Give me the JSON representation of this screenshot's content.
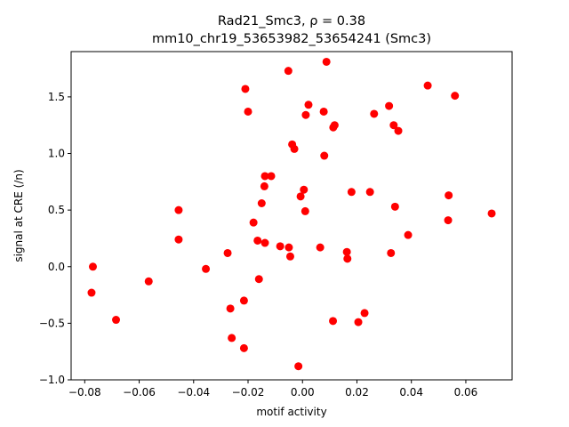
{
  "chart_data": {
    "type": "scatter",
    "title_line1": "Rad21_Smc3, ρ = 0.38",
    "title_line2": "mm10_chr19_53653982_53654241 (Smc3)",
    "xlabel": "motif activity",
    "ylabel": "signal at CRE (/n)",
    "xlim": [
      -0.085,
      0.077
    ],
    "ylim": [
      -1.0,
      1.9
    ],
    "xticks": [
      -0.08,
      -0.06,
      -0.04,
      -0.02,
      0.0,
      0.02,
      0.04,
      0.06
    ],
    "xtick_labels": [
      "−0.08",
      "−0.06",
      "−0.04",
      "−0.02",
      "0.00",
      "0.02",
      "0.04",
      "0.06"
    ],
    "yticks": [
      -1.0,
      -0.5,
      0.0,
      0.5,
      1.0,
      1.5
    ],
    "ytick_labels": [
      "−1.0",
      "−0.5",
      "0.0",
      "0.5",
      "1.0",
      "1.5"
    ],
    "grid": false,
    "marker_color": "#ff0000",
    "points": [
      [
        -0.0775,
        -0.23
      ],
      [
        -0.077,
        0.0
      ],
      [
        -0.0685,
        -0.47
      ],
      [
        -0.0565,
        -0.13
      ],
      [
        -0.0455,
        0.5
      ],
      [
        -0.0455,
        0.24
      ],
      [
        -0.0355,
        -0.02
      ],
      [
        -0.0275,
        0.12
      ],
      [
        -0.0265,
        -0.37
      ],
      [
        -0.026,
        -0.63
      ],
      [
        -0.0215,
        -0.3
      ],
      [
        -0.0215,
        -0.72
      ],
      [
        -0.021,
        1.57
      ],
      [
        -0.02,
        1.37
      ],
      [
        -0.018,
        0.39
      ],
      [
        -0.0165,
        0.23
      ],
      [
        -0.016,
        -0.11
      ],
      [
        -0.015,
        0.56
      ],
      [
        -0.014,
        0.71
      ],
      [
        -0.0138,
        0.8
      ],
      [
        -0.0138,
        0.21
      ],
      [
        -0.0115,
        0.8
      ],
      [
        -0.0082,
        0.18
      ],
      [
        -0.0052,
        1.73
      ],
      [
        -0.005,
        0.17
      ],
      [
        -0.0045,
        0.09
      ],
      [
        -0.0038,
        1.08
      ],
      [
        -0.003,
        1.04
      ],
      [
        -0.0015,
        -0.88
      ],
      [
        -0.0007,
        0.62
      ],
      [
        0.0005,
        0.68
      ],
      [
        0.001,
        0.49
      ],
      [
        0.0012,
        1.34
      ],
      [
        0.0022,
        1.43
      ],
      [
        0.0065,
        0.17
      ],
      [
        0.0078,
        1.37
      ],
      [
        0.008,
        0.98
      ],
      [
        0.0088,
        1.81
      ],
      [
        0.0112,
        -0.48
      ],
      [
        0.0113,
        1.23
      ],
      [
        0.0118,
        1.25
      ],
      [
        0.0163,
        0.13
      ],
      [
        0.0165,
        0.07
      ],
      [
        0.018,
        0.66
      ],
      [
        0.0205,
        -0.49
      ],
      [
        0.0228,
        -0.41
      ],
      [
        0.0248,
        0.66
      ],
      [
        0.0263,
        1.35
      ],
      [
        0.0318,
        1.42
      ],
      [
        0.0325,
        0.12
      ],
      [
        0.0335,
        1.25
      ],
      [
        0.034,
        0.53
      ],
      [
        0.0352,
        1.2
      ],
      [
        0.0388,
        0.28
      ],
      [
        0.046,
        1.6
      ],
      [
        0.0535,
        0.41
      ],
      [
        0.0537,
        0.63
      ],
      [
        0.056,
        1.51
      ],
      [
        0.0695,
        0.47
      ]
    ]
  }
}
